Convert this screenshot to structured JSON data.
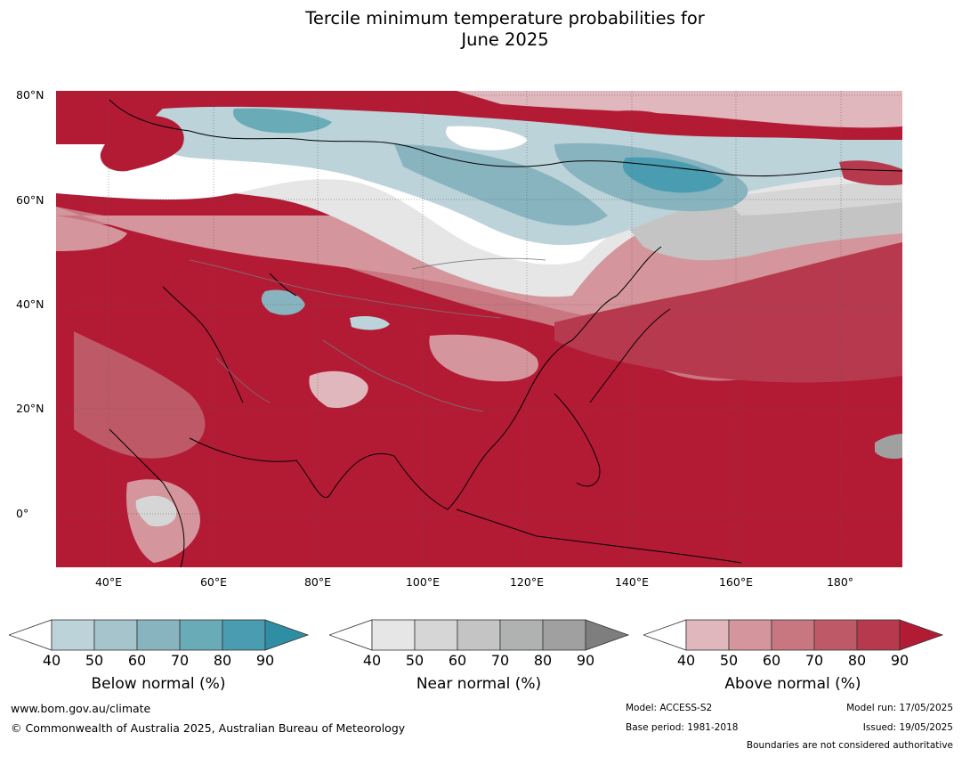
{
  "title": {
    "line1": "Tercile minimum temperature probabilities for",
    "line2": "June 2025"
  },
  "map": {
    "lat_labels": [
      "80°N",
      "60°N",
      "40°N",
      "20°N",
      "0°"
    ],
    "lon_labels": [
      "40°E",
      "60°E",
      "80°E",
      "100°E",
      "120°E",
      "140°E",
      "160°E",
      "180°"
    ],
    "extent": {
      "lon": [
        30,
        191
      ],
      "lat": [
        -10,
        81
      ]
    },
    "regions": [
      {
        "name": "Below normal",
        "where": "northern and western Siberia, Mongolia, central Asia patches"
      },
      {
        "name": "Near normal",
        "where": "band across northern Eurasia, northeastern Siberia"
      },
      {
        "name": "Above normal",
        "where": "southern Asia, tropics, Pacific, Scandinavia, far-east Russia"
      }
    ]
  },
  "legend": [
    {
      "caption": "Below normal (%)",
      "ticks": [
        "40",
        "50",
        "60",
        "70",
        "80",
        "90"
      ],
      "colors": [
        "#bdd3da",
        "#a5c4cb",
        "#88b4c0",
        "#6aabb8",
        "#4a9db0",
        "#2e8ea3"
      ]
    },
    {
      "caption": "Near normal (%)",
      "ticks": [
        "40",
        "50",
        "60",
        "70",
        "80",
        "90"
      ],
      "colors": [
        "#e6e6e6",
        "#d6d6d6",
        "#c4c4c4",
        "#b0b2b2",
        "#a0a0a0",
        "#7e7e7e"
      ]
    },
    {
      "caption": "Above normal (%)",
      "ticks": [
        "40",
        "50",
        "60",
        "70",
        "80",
        "90"
      ],
      "colors": [
        "#e0b7bc",
        "#d4969c",
        "#c87680",
        "#be5a68",
        "#b7394e",
        "#b31b35"
      ]
    }
  ],
  "footer": {
    "website": "www.bom.gov.au/climate",
    "copyright": "© Commonwealth of Australia 2025, Australian Bureau of Meteorology",
    "model": "Model: ACCESS-S2",
    "base_period": "Base period: 1981-2018",
    "model_run": "Model run: 17/05/2025",
    "issued": "Issued: 19/05/2025",
    "disclaimer": "Boundaries are not considered authoritative"
  }
}
